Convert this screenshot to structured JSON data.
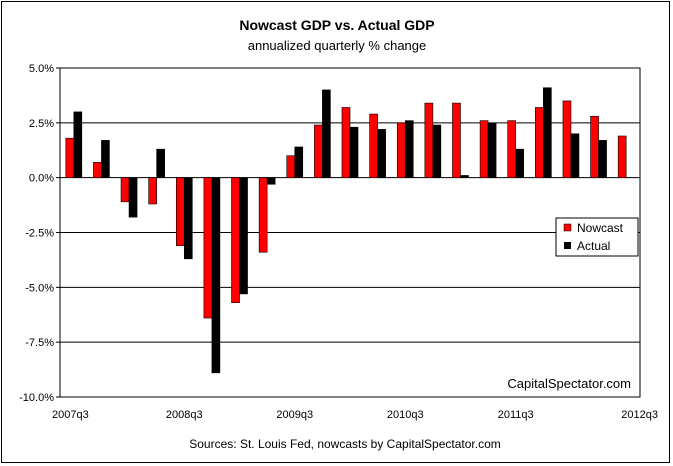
{
  "chart_data": {
    "type": "bar",
    "title": "Nowcast GDP  vs. Actual GDP",
    "subtitle": "annualized quarterly % change",
    "source": "Sources: St. Louis Fed, nowcasts by CapitalSpectator.com",
    "watermark": "CapitalSpectator.com",
    "ylim": [
      -10,
      5
    ],
    "yticks": [
      5,
      2.5,
      0,
      -2.5,
      -5,
      -7.5,
      -10
    ],
    "ytick_labels": [
      "5.0%",
      "2.5%",
      "0.0%",
      "-2.5%",
      "-5.0%",
      "-7.5%",
      "-10.0%"
    ],
    "categories": [
      "2007q3",
      "2007q4",
      "2008q1",
      "2008q2",
      "2008q3",
      "2008q4",
      "2009q1",
      "2009q2",
      "2009q3",
      "2009q4",
      "2010q1",
      "2010q2",
      "2010q3",
      "2010q4",
      "2011q1",
      "2011q2",
      "2011q3",
      "2011q4",
      "2012q1",
      "2012q2",
      "2012q3"
    ],
    "x_tick_labels": [
      {
        "index": 0,
        "label": "2007q3"
      },
      {
        "index": 4,
        "label": "2008q3"
      },
      {
        "index": 8,
        "label": "2009q3"
      },
      {
        "index": 12,
        "label": "2010q3"
      },
      {
        "index": 16,
        "label": "2011q3"
      },
      {
        "index": 20,
        "label": "2012q3"
      }
    ],
    "series": [
      {
        "name": "Nowcast",
        "color": "#ff0000",
        "values": [
          1.8,
          0.7,
          -1.1,
          -1.2,
          -3.1,
          -6.4,
          -5.7,
          -3.4,
          1.0,
          2.4,
          3.2,
          2.9,
          2.5,
          3.4,
          3.4,
          2.6,
          2.6,
          3.2,
          3.5,
          2.8,
          1.9
        ]
      },
      {
        "name": "Actual",
        "color": "#000000",
        "values": [
          3.0,
          1.7,
          -1.8,
          1.3,
          -3.7,
          -8.9,
          -5.3,
          -0.3,
          1.4,
          4.0,
          2.3,
          2.2,
          2.6,
          2.4,
          0.1,
          2.5,
          1.3,
          4.1,
          2.0,
          1.7,
          null
        ]
      }
    ],
    "legend": {
      "position": "right"
    },
    "grid": true
  }
}
